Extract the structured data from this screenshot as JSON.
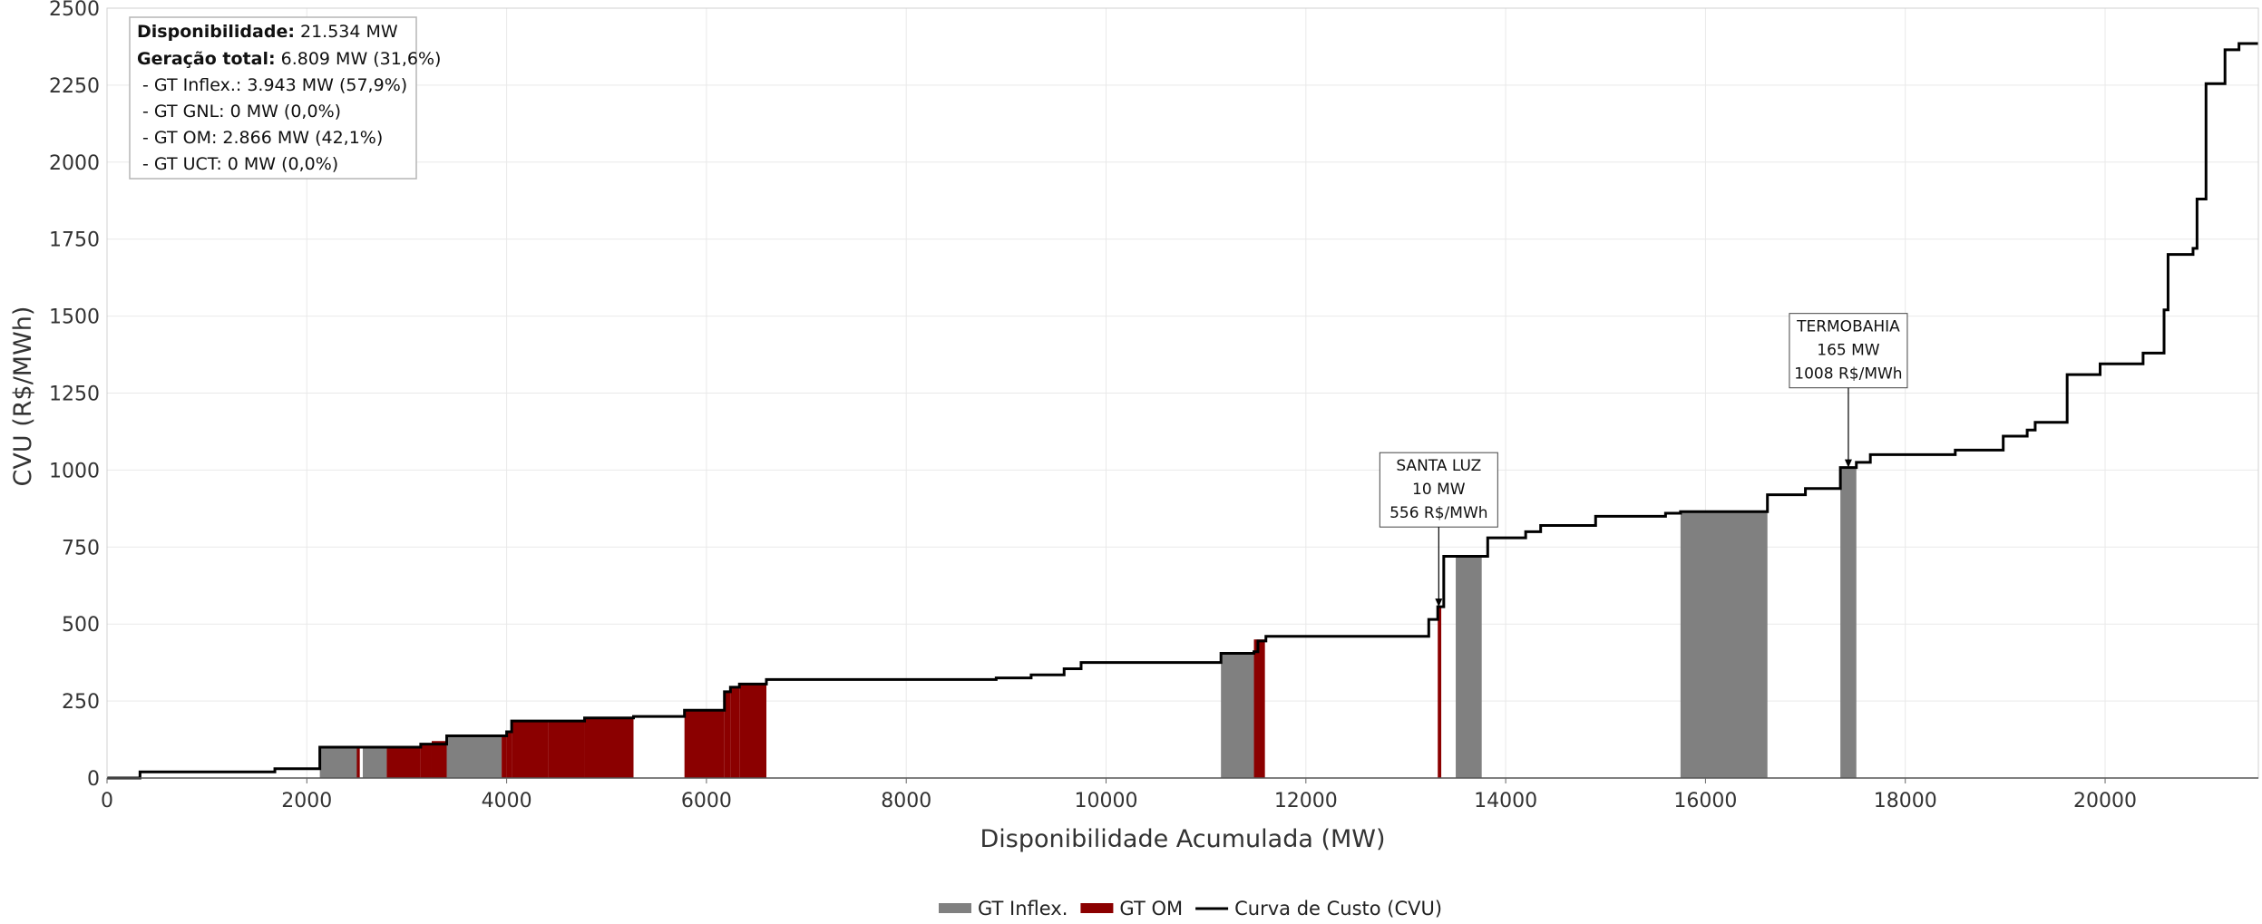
{
  "chart_data": {
    "type": "area",
    "xlabel": "Disponibilidade Acumulada (MW)",
    "ylabel": "CVU (R$/MWh)",
    "xlim": [
      0,
      21534
    ],
    "ylim": [
      0,
      2500
    ],
    "x_ticks": [
      "0",
      "2000",
      "4000",
      "6000",
      "8000",
      "10000",
      "12000",
      "14000",
      "16000",
      "18000",
      "20000"
    ],
    "y_ticks": [
      "0",
      "250",
      "500",
      "750",
      "1000",
      "1250",
      "1500",
      "1750",
      "2000",
      "2250",
      "2500"
    ],
    "grid": true,
    "legend_position": "bottom-center",
    "colors": {
      "inflex": "#808080",
      "om": "#8b0000",
      "curve": "#000000"
    },
    "series": [
      {
        "name": "GT Inflex.",
        "kind": "bars",
        "bars": [
          [
            2130,
            2520,
            100
          ],
          [
            2560,
            2800,
            100
          ],
          [
            3400,
            3950,
            137
          ],
          [
            11150,
            11480,
            405
          ],
          [
            13500,
            13760,
            720
          ],
          [
            15750,
            16620,
            865
          ],
          [
            17350,
            17510,
            1008
          ]
        ]
      },
      {
        "name": "GT OM",
        "kind": "bars",
        "bars": [
          [
            2500,
            2530,
            100
          ],
          [
            2800,
            3140,
            100
          ],
          [
            3140,
            3250,
            110
          ],
          [
            3250,
            3400,
            120
          ],
          [
            3950,
            4000,
            137
          ],
          [
            4000,
            4050,
            150
          ],
          [
            4050,
            4420,
            185
          ],
          [
            4420,
            4780,
            185
          ],
          [
            4780,
            5270,
            195
          ],
          [
            5780,
            6180,
            220
          ],
          [
            6180,
            6240,
            280
          ],
          [
            6240,
            6330,
            295
          ],
          [
            6330,
            6600,
            305
          ],
          [
            11480,
            11590,
            450
          ],
          [
            13320,
            13355,
            556
          ]
        ]
      },
      {
        "name": "Curva de Custo (CVU)",
        "kind": "step",
        "steps": [
          [
            0,
            0
          ],
          [
            330,
            20
          ],
          [
            1680,
            30
          ],
          [
            2130,
            100
          ],
          [
            2800,
            100
          ],
          [
            3140,
            110
          ],
          [
            3400,
            137
          ],
          [
            3950,
            137
          ],
          [
            4000,
            150
          ],
          [
            4050,
            185
          ],
          [
            4780,
            195
          ],
          [
            5270,
            200
          ],
          [
            5780,
            220
          ],
          [
            6180,
            280
          ],
          [
            6240,
            295
          ],
          [
            6330,
            305
          ],
          [
            6600,
            320
          ],
          [
            8900,
            325
          ],
          [
            9250,
            335
          ],
          [
            9580,
            355
          ],
          [
            9750,
            375
          ],
          [
            11150,
            405
          ],
          [
            11480,
            410
          ],
          [
            11520,
            445
          ],
          [
            11600,
            460
          ],
          [
            13230,
            515
          ],
          [
            13320,
            556
          ],
          [
            13380,
            720
          ],
          [
            13760,
            720
          ],
          [
            13820,
            780
          ],
          [
            14200,
            800
          ],
          [
            14350,
            820
          ],
          [
            14900,
            850
          ],
          [
            15600,
            860
          ],
          [
            15750,
            865
          ],
          [
            16620,
            920
          ],
          [
            17000,
            940
          ],
          [
            17350,
            1008
          ],
          [
            17510,
            1025
          ],
          [
            17650,
            1050
          ],
          [
            18500,
            1065
          ],
          [
            18980,
            1110
          ],
          [
            19220,
            1130
          ],
          [
            19300,
            1155
          ],
          [
            19620,
            1310
          ],
          [
            19950,
            1345
          ],
          [
            20380,
            1380
          ],
          [
            20590,
            1520
          ],
          [
            20630,
            1700
          ],
          [
            20880,
            1720
          ],
          [
            20920,
            1880
          ],
          [
            21010,
            2255
          ],
          [
            21200,
            2365
          ],
          [
            21340,
            2385
          ],
          [
            21534,
            2385
          ]
        ]
      }
    ],
    "annotations": [
      {
        "lines": [
          "SANTA LUZ",
          "10 MW",
          "556 R$/MWh"
        ],
        "x": 13330,
        "y": 556
      },
      {
        "lines": [
          "TERMOBAHIA",
          "165 MW",
          "1008 R$/MWh"
        ],
        "x": 17430,
        "y": 1008
      }
    ]
  },
  "info_box": {
    "disp_label": "Disponibilidade:",
    "disp_value": " 21.534 MW",
    "ger_label": "Geração total:",
    "ger_value": " 6.809 MW (31,6%)",
    "lines": [
      " - GT Inflex.: 3.943 MW (57,9%)",
      " - GT GNL: 0 MW (0,0%)",
      " - GT OM: 2.866 MW (42,1%)",
      " - GT UCT: 0 MW (0,0%)"
    ]
  },
  "legend": {
    "items": [
      {
        "label": "GT Inflex.",
        "color": "#808080",
        "kind": "box"
      },
      {
        "label": "GT OM",
        "color": "#8b0000",
        "kind": "box"
      },
      {
        "label": "Curva de Custo (CVU)",
        "color": "#000000",
        "kind": "line"
      }
    ]
  }
}
